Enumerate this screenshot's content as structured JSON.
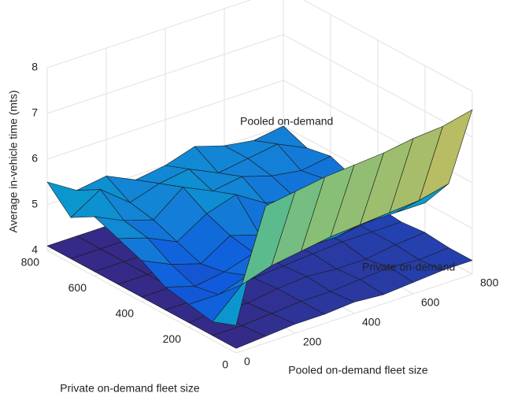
{
  "chart_data": {
    "type": "surface3d",
    "xlabel": "Pooled on-demand fleet size",
    "ylabel": "Private on-demand fleet size",
    "zlabel": "Average in-vehicle time (mts)",
    "x": [
      0,
      100,
      200,
      300,
      400,
      500,
      600,
      700,
      800
    ],
    "y": [
      0,
      100,
      200,
      300,
      400,
      500,
      600,
      700,
      800
    ],
    "xlim": [
      0,
      800
    ],
    "ylim": [
      0,
      800
    ],
    "zlim": [
      4,
      8
    ],
    "xticks": [
      0,
      200,
      400,
      600,
      800
    ],
    "yticks": [
      0,
      200,
      400,
      600,
      800
    ],
    "zticks": [
      4,
      5,
      6,
      7,
      8
    ],
    "grid": true,
    "colormap": [
      "#352a87",
      "#0f5cdd",
      "#1481d6",
      "#06a4ca",
      "#2eb7a4",
      "#87bf77",
      "#d1bb59",
      "#fec832",
      "#f9fb0e"
    ],
    "series": [
      {
        "name": "Pooled on-demand",
        "z": [
          [
            4.6,
            7.0,
            7.1,
            7.2,
            7.25,
            7.3,
            7.4,
            7.45,
            7.6
          ],
          [
            4.4,
            5.0,
            5.2,
            5.3,
            5.4,
            5.45,
            5.5,
            5.55,
            5.7
          ],
          [
            4.5,
            4.5,
            4.7,
            4.8,
            4.9,
            4.9,
            5.0,
            5.0,
            5.0
          ],
          [
            4.6,
            4.4,
            4.5,
            4.7,
            4.6,
            4.8,
            4.7,
            4.6,
            4.7
          ],
          [
            4.9,
            4.6,
            4.4,
            4.8,
            4.6,
            4.7,
            4.8,
            4.6,
            4.6
          ],
          [
            5.1,
            4.9,
            4.6,
            5.0,
            5.2,
            4.8,
            4.7,
            4.9,
            4.7
          ],
          [
            5.3,
            5.0,
            4.8,
            5.3,
            5.0,
            5.1,
            4.9,
            4.8,
            4.9
          ],
          [
            5.0,
            5.4,
            4.9,
            5.1,
            5.2,
            4.9,
            5.0,
            5.1,
            4.8
          ],
          [
            5.5,
            5.1,
            5.2,
            4.9,
            5.0,
            5.2,
            5.0,
            4.9,
            5.0
          ]
        ]
      },
      {
        "name": "Private on-demand",
        "z": [
          [
            4.1,
            4.15,
            4.2,
            4.2,
            4.25,
            4.2,
            4.25,
            4.3,
            4.3
          ],
          [
            4.1,
            4.1,
            4.15,
            4.2,
            4.2,
            4.25,
            4.3,
            4.25,
            4.3
          ],
          [
            4.1,
            4.15,
            4.1,
            4.2,
            4.25,
            4.2,
            4.2,
            4.3,
            4.35
          ],
          [
            4.1,
            4.1,
            4.15,
            4.15,
            4.2,
            4.25,
            4.3,
            4.3,
            4.3
          ],
          [
            4.1,
            4.1,
            4.1,
            4.2,
            4.2,
            4.2,
            4.25,
            4.3,
            4.35
          ],
          [
            4.1,
            4.1,
            4.15,
            4.15,
            4.2,
            4.3,
            4.25,
            4.3,
            4.3
          ],
          [
            4.1,
            4.1,
            4.1,
            4.15,
            4.2,
            4.2,
            4.3,
            4.35,
            4.3
          ],
          [
            4.1,
            4.1,
            4.1,
            4.15,
            4.2,
            4.25,
            4.25,
            4.3,
            4.35
          ],
          [
            4.1,
            4.1,
            4.1,
            4.1,
            4.15,
            4.2,
            4.3,
            4.3,
            4.4
          ]
        ]
      }
    ]
  }
}
